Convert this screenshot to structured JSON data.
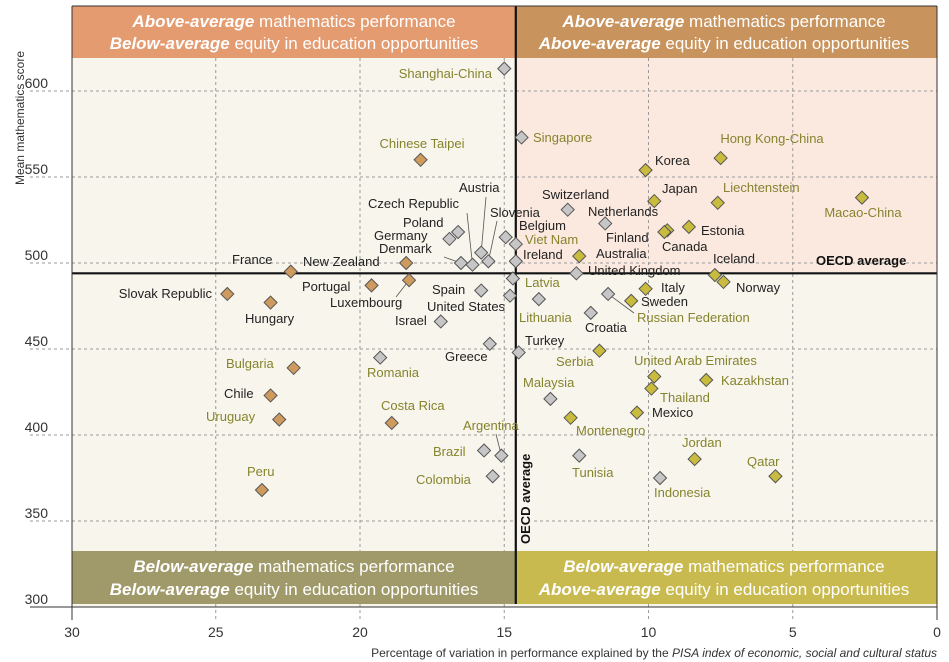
{
  "colors": {
    "quadrant_top_left": "#E49B70",
    "quadrant_top_right": "#C8935C",
    "quadrant_bottom_left": "#A09A6A",
    "quadrant_bottom_right": "#C9BA50",
    "highlight_region": "#FBE9DF",
    "plot_background": "#F8F5EC",
    "marker_orange": "#CF9A5E",
    "marker_yellow": "#C9BB3E",
    "marker_gray": "#C6C6C6",
    "label_olive": "#85842E",
    "label_black": "#222222"
  },
  "quadrants": {
    "top_left": {
      "l1_em": "Above-average",
      "l1_rest": " mathematics performance",
      "l2_em": "Below-average",
      "l2_rest": " equity in education opportunities"
    },
    "top_right": {
      "l1_em": "Above-average",
      "l1_rest": " mathematics performance",
      "l2_em": "Above-average",
      "l2_rest": " equity in education opportunities"
    },
    "bottom_left": {
      "l1_em": "Below-average",
      "l1_rest": " mathematics performance",
      "l2_em": "Below-average",
      "l2_rest": " equity in education opportunities"
    },
    "bottom_right": {
      "l1_em": "Below-average",
      "l1_rest": " mathematics performance",
      "l2_em": "Above-average",
      "l2_rest": " equity in education opportunities"
    }
  },
  "chart_data": {
    "type": "scatter",
    "xlabel_prefix": "Percentage of variation in performance explained by the ",
    "xlabel_italic": "PISA index of economic, social and cultural status",
    "ylabel": "Mean mathematics score",
    "xlim": [
      30,
      0
    ],
    "ylim": [
      300,
      620
    ],
    "x_reversed": true,
    "x_ticks": [
      30,
      25,
      20,
      15,
      10,
      5,
      0
    ],
    "y_ticks": [
      300,
      350,
      400,
      450,
      500,
      550,
      600
    ],
    "grid": true,
    "reference_lines": {
      "horizontal": {
        "label": "OECD average",
        "value": 494
      },
      "vertical": {
        "label": "OECD average",
        "value": 14.6
      }
    },
    "points": [
      {
        "name": "Shanghai-China",
        "x": 15.0,
        "y": 613,
        "marker": "gray",
        "label": "olive"
      },
      {
        "name": "Singapore",
        "x": 14.4,
        "y": 573,
        "marker": "gray",
        "label": "olive"
      },
      {
        "name": "Chinese Taipei",
        "x": 17.9,
        "y": 560,
        "marker": "orange",
        "label": "olive"
      },
      {
        "name": "Hong Kong-China",
        "x": 7.5,
        "y": 561,
        "marker": "yellow",
        "label": "olive"
      },
      {
        "name": "Korea",
        "x": 10.1,
        "y": 554,
        "marker": "yellow",
        "label": "black"
      },
      {
        "name": "Macao-China",
        "x": 2.6,
        "y": 538,
        "marker": "yellow",
        "label": "olive"
      },
      {
        "name": "Japan",
        "x": 9.8,
        "y": 536,
        "marker": "yellow",
        "label": "black"
      },
      {
        "name": "Liechtenstein",
        "x": 7.6,
        "y": 535,
        "marker": "yellow",
        "label": "olive"
      },
      {
        "name": "Switzerland",
        "x": 12.8,
        "y": 531,
        "marker": "gray",
        "label": "black"
      },
      {
        "name": "Netherlands",
        "x": 11.5,
        "y": 523,
        "marker": "gray",
        "label": "black"
      },
      {
        "name": "Estonia",
        "x": 8.6,
        "y": 521,
        "marker": "yellow",
        "label": "black"
      },
      {
        "name": "Finland",
        "x": 9.35,
        "y": 519,
        "marker": "yellow",
        "label": "black"
      },
      {
        "name": "Canada",
        "x": 9.45,
        "y": 518,
        "marker": "yellow",
        "label": "black"
      },
      {
        "name": "Poland",
        "x": 16.6,
        "y": 518,
        "marker": "gray",
        "label": "black"
      },
      {
        "name": "Germany",
        "x": 16.9,
        "y": 514,
        "marker": "gray",
        "label": "black"
      },
      {
        "name": "Belgium",
        "x": 14.95,
        "y": 515,
        "marker": "gray",
        "label": "black"
      },
      {
        "name": "Viet Nam",
        "x": 14.6,
        "y": 511,
        "marker": "gray",
        "label": "olive"
      },
      {
        "name": "Austria",
        "x": 15.8,
        "y": 506,
        "marker": "gray",
        "label": "black"
      },
      {
        "name": "Australia",
        "x": 12.4,
        "y": 504,
        "marker": "yellow",
        "label": "black"
      },
      {
        "name": "Ireland",
        "x": 14.6,
        "y": 501,
        "marker": "gray",
        "label": "black"
      },
      {
        "name": "Slovenia",
        "x": 15.55,
        "y": 501,
        "marker": "gray",
        "label": "black"
      },
      {
        "name": "Denmark",
        "x": 16.5,
        "y": 500,
        "marker": "gray",
        "label": "black"
      },
      {
        "name": "New Zealand",
        "x": 18.4,
        "y": 500,
        "marker": "orange",
        "label": "black"
      },
      {
        "name": "Czech Republic",
        "x": 16.1,
        "y": 499,
        "marker": "gray",
        "label": "black"
      },
      {
        "name": "France",
        "x": 22.4,
        "y": 495,
        "marker": "orange",
        "label": "black"
      },
      {
        "name": "United Kingdom",
        "x": 12.5,
        "y": 494,
        "marker": "gray",
        "label": "black"
      },
      {
        "name": "Iceland",
        "x": 7.7,
        "y": 493,
        "marker": "yellow",
        "label": "black"
      },
      {
        "name": "Latvia",
        "x": 14.7,
        "y": 491,
        "marker": "gray",
        "label": "olive"
      },
      {
        "name": "Luxembourg",
        "x": 18.3,
        "y": 490,
        "marker": "orange",
        "label": "black"
      },
      {
        "name": "Norway",
        "x": 7.4,
        "y": 489,
        "marker": "yellow",
        "label": "black"
      },
      {
        "name": "Portugal",
        "x": 19.6,
        "y": 487,
        "marker": "orange",
        "label": "black"
      },
      {
        "name": "Italy",
        "x": 10.1,
        "y": 485,
        "marker": "yellow",
        "label": "black"
      },
      {
        "name": "Spain",
        "x": 15.8,
        "y": 484,
        "marker": "gray",
        "label": "black"
      },
      {
        "name": "Russian Federation",
        "x": 11.4,
        "y": 482,
        "marker": "gray",
        "label": "olive"
      },
      {
        "name": "Slovak Republic",
        "x": 24.6,
        "y": 482,
        "marker": "orange",
        "label": "black"
      },
      {
        "name": "United States",
        "x": 14.8,
        "y": 481,
        "marker": "gray",
        "label": "black"
      },
      {
        "name": "Lithuania",
        "x": 13.8,
        "y": 479,
        "marker": "gray",
        "label": "olive"
      },
      {
        "name": "Sweden",
        "x": 10.6,
        "y": 478,
        "marker": "yellow",
        "label": "black"
      },
      {
        "name": "Hungary",
        "x": 23.1,
        "y": 477,
        "marker": "orange",
        "label": "black"
      },
      {
        "name": "Croatia",
        "x": 12.0,
        "y": 471,
        "marker": "gray",
        "label": "black"
      },
      {
        "name": "Israel",
        "x": 17.2,
        "y": 466,
        "marker": "gray",
        "label": "black"
      },
      {
        "name": "Greece",
        "x": 15.5,
        "y": 453,
        "marker": "gray",
        "label": "black"
      },
      {
        "name": "Serbia",
        "x": 11.7,
        "y": 449,
        "marker": "yellow",
        "label": "olive"
      },
      {
        "name": "Turkey",
        "x": 14.5,
        "y": 448,
        "marker": "gray",
        "label": "black"
      },
      {
        "name": "Romania",
        "x": 19.3,
        "y": 445,
        "marker": "gray",
        "label": "olive"
      },
      {
        "name": "Bulgaria",
        "x": 22.3,
        "y": 439,
        "marker": "orange",
        "label": "olive"
      },
      {
        "name": "United Arab Emirates",
        "x": 9.8,
        "y": 434,
        "marker": "yellow",
        "label": "olive"
      },
      {
        "name": "Kazakhstan",
        "x": 8.0,
        "y": 432,
        "marker": "yellow",
        "label": "olive"
      },
      {
        "name": "Thailand",
        "x": 9.9,
        "y": 427,
        "marker": "yellow",
        "label": "olive"
      },
      {
        "name": "Chile",
        "x": 23.1,
        "y": 423,
        "marker": "orange",
        "label": "black"
      },
      {
        "name": "Malaysia",
        "x": 13.4,
        "y": 421,
        "marker": "gray",
        "label": "olive"
      },
      {
        "name": "Mexico",
        "x": 10.4,
        "y": 413,
        "marker": "yellow",
        "label": "black"
      },
      {
        "name": "Montenegro",
        "x": 12.7,
        "y": 410,
        "marker": "yellow",
        "label": "olive"
      },
      {
        "name": "Uruguay",
        "x": 22.8,
        "y": 409,
        "marker": "orange",
        "label": "olive"
      },
      {
        "name": "Costa Rica",
        "x": 18.9,
        "y": 407,
        "marker": "orange",
        "label": "olive"
      },
      {
        "name": "Brazil",
        "x": 15.7,
        "y": 391,
        "marker": "gray",
        "label": "olive"
      },
      {
        "name": "Argentina",
        "x": 15.1,
        "y": 388,
        "marker": "gray",
        "label": "olive"
      },
      {
        "name": "Tunisia",
        "x": 12.4,
        "y": 388,
        "marker": "gray",
        "label": "olive"
      },
      {
        "name": "Jordan",
        "x": 8.4,
        "y": 386,
        "marker": "yellow",
        "label": "olive"
      },
      {
        "name": "Colombia",
        "x": 15.4,
        "y": 376,
        "marker": "gray",
        "label": "olive"
      },
      {
        "name": "Qatar",
        "x": 5.6,
        "y": 376,
        "marker": "yellow",
        "label": "olive"
      },
      {
        "name": "Indonesia",
        "x": 9.6,
        "y": 375,
        "marker": "gray",
        "label": "olive"
      },
      {
        "name": "Peru",
        "x": 23.4,
        "y": 368,
        "marker": "orange",
        "label": "olive"
      }
    ]
  }
}
